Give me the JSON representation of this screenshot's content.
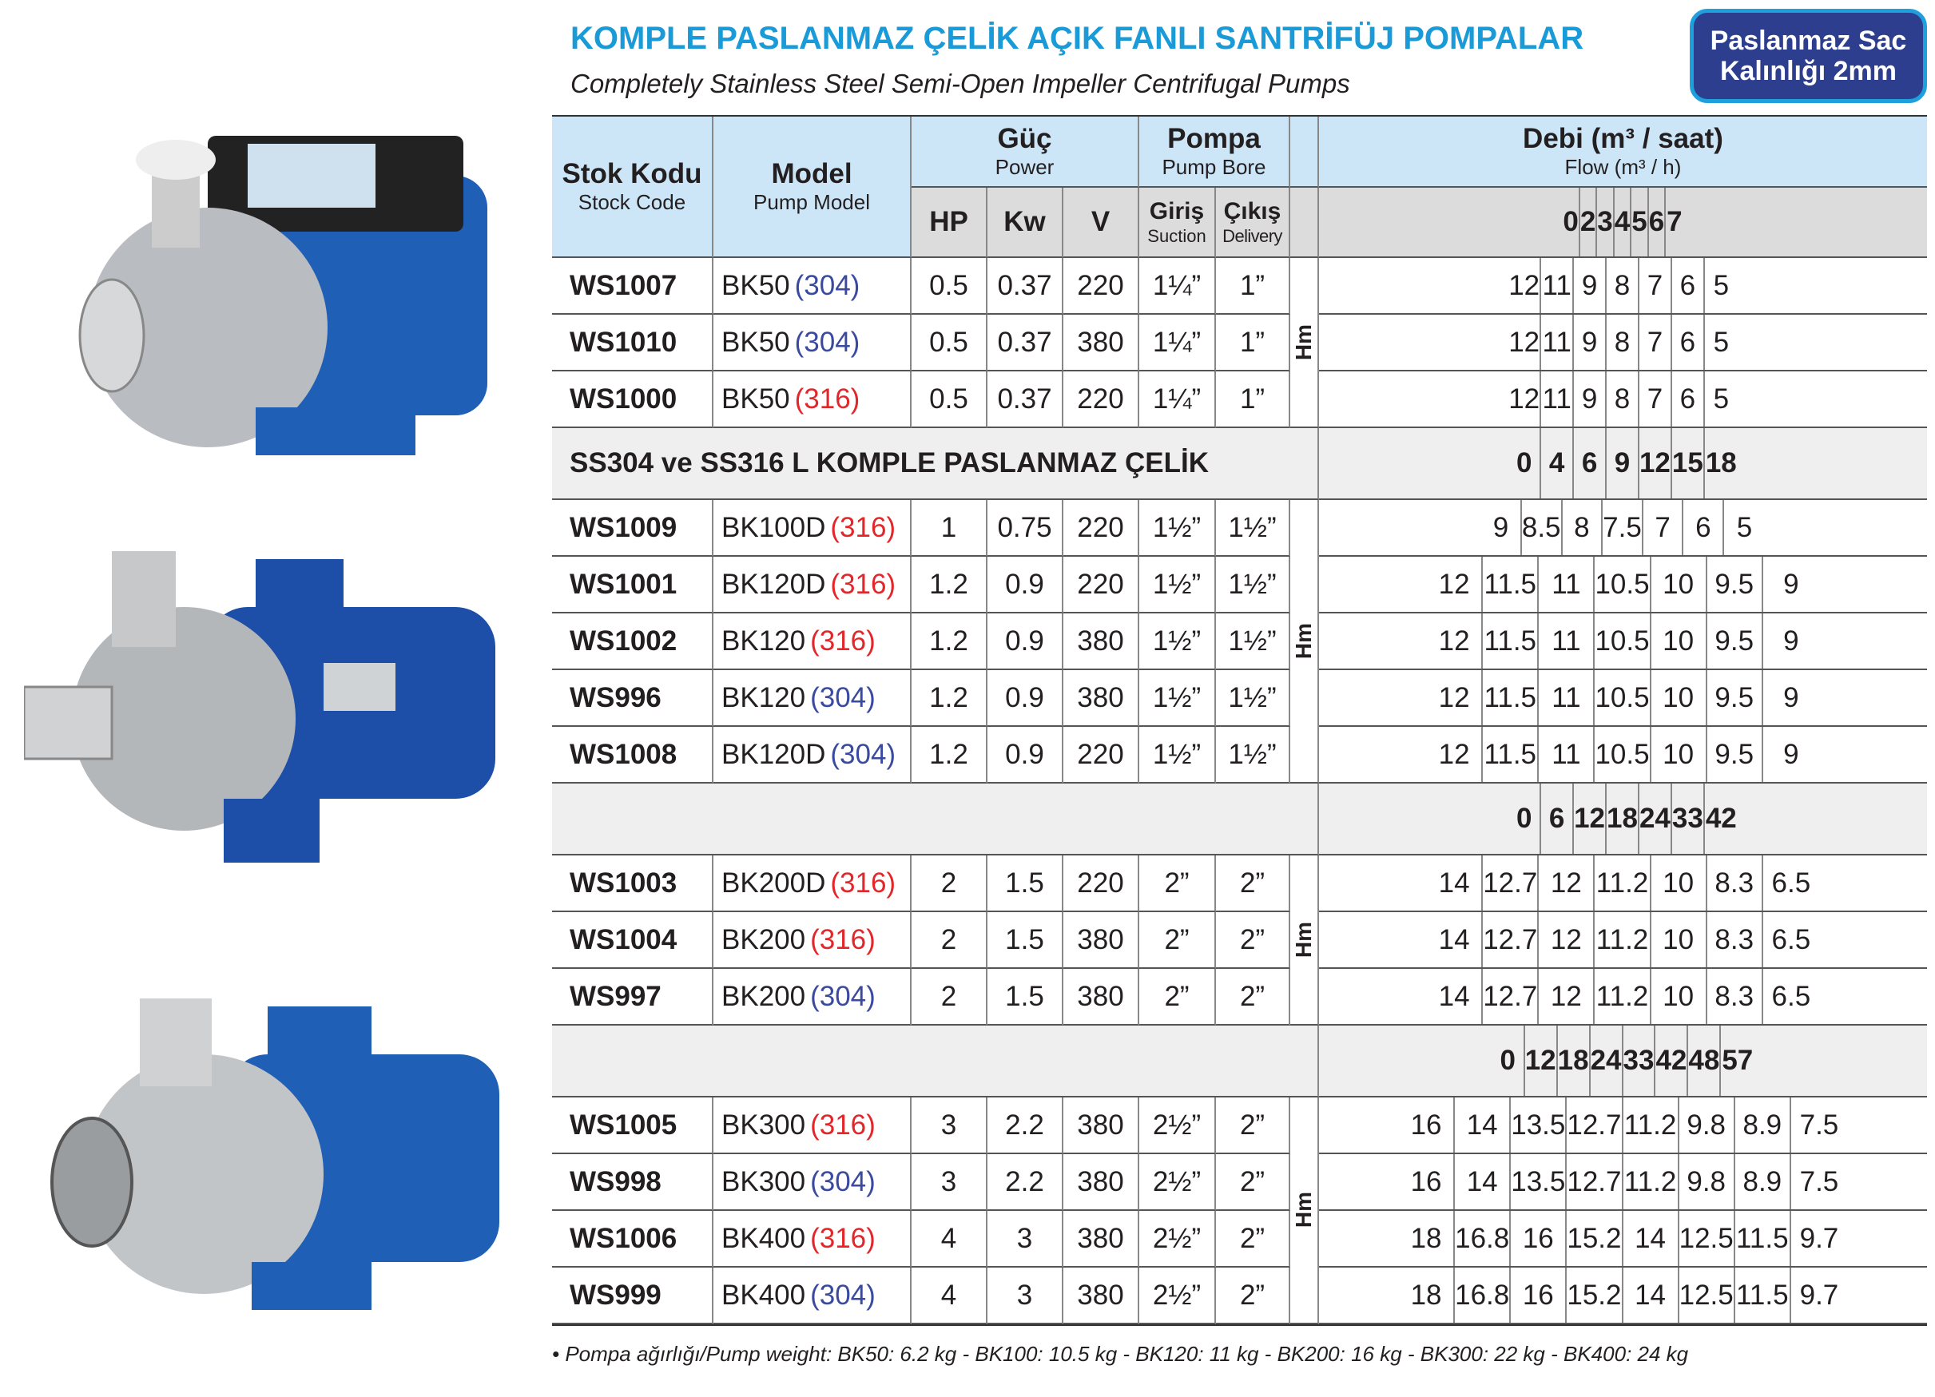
{
  "title": "KOMPLE PASLANMAZ ÇELİK AÇIK FANLI SANTRİFÜJ POMPALAR",
  "subtitle": "Completely Stainless Steel Semi-Open Impeller Centrifugal Pumps",
  "badge": {
    "line1": "Paslanmaz Sac",
    "line2": "Kalınlığı 2mm"
  },
  "colors": {
    "title": "#1a9ad6",
    "badge": "#2d3e8f",
    "header": "#cce6f7",
    "mat316": "#e3262a",
    "mat304": "#3a4a9f"
  },
  "header": {
    "stock_code": "Stok Kodu",
    "stock_code_en": "Stock Code",
    "model": "Model",
    "model_en": "Pump Model",
    "power": "Güç",
    "power_en": "Power",
    "pump": "Pompa",
    "pump_en": "Pump Bore",
    "flow": "Debi (m³ / saat)",
    "flow_en": "Flow (m³ / h)",
    "hp": "HP",
    "kw": "Kw",
    "v": "V",
    "suction": "Giriş",
    "suction_en": "Suction",
    "delivery": "Çıkış",
    "delivery_en": "Delivery"
  },
  "hm_label": "Hm",
  "blocks": [
    {
      "section": "",
      "flow": [
        "0",
        "2",
        "3",
        "4",
        "5",
        "6",
        "7"
      ],
      "rows": [
        {
          "code": "WS1007",
          "model": "BK50",
          "mat": "(304)",
          "overlay": true,
          "hp": "0.5",
          "kw": "0.37",
          "v": "220",
          "in": "1¼”",
          "out": "1”",
          "hm": [
            "12",
            "11",
            "9",
            "8",
            "7",
            "6",
            "5"
          ]
        },
        {
          "code": "WS1010",
          "model": "BK50",
          "mat": "(304)",
          "overlay": true,
          "hp": "0.5",
          "kw": "0.37",
          "v": "380",
          "in": "1¼”",
          "out": "1”",
          "hm": [
            "12",
            "11",
            "9",
            "8",
            "7",
            "6",
            "5"
          ]
        },
        {
          "code": "WS1000",
          "model": "BK50",
          "mat": "(316)",
          "overlay": true,
          "hp": "0.5",
          "kw": "0.37",
          "v": "220",
          "in": "1¼”",
          "out": "1”",
          "hm": [
            "12",
            "11",
            "9",
            "8",
            "7",
            "6",
            "5"
          ]
        }
      ]
    },
    {
      "section": "SS304 ve SS316 L KOMPLE PASLANMAZ ÇELİK",
      "flow": [
        "0",
        "4",
        "6",
        "9",
        "12",
        "15",
        "18"
      ],
      "rows": [
        {
          "code": "WS1009",
          "model": "BK100D",
          "mat": "(316)",
          "overlay": false,
          "hp": "1",
          "kw": "0.75",
          "v": "220",
          "in": "1½”",
          "out": "1½”",
          "hm": [
            "9",
            "8.5",
            "8",
            "7.5",
            "7",
            "6",
            "5"
          ]
        },
        {
          "code": "WS1001",
          "model": "BK120D",
          "mat": "(316)",
          "overlay": true,
          "hp": "1.2",
          "kw": "0.9",
          "v": "220",
          "in": "1½”",
          "out": "1½”",
          "hm": [
            "12",
            "11.5",
            "11",
            "10.5",
            "10",
            "9.5",
            "9"
          ]
        },
        {
          "code": "WS1002",
          "model": "BK120",
          "mat": "(316)",
          "overlay": true,
          "hp": "1.2",
          "kw": "0.9",
          "v": "380",
          "in": "1½”",
          "out": "1½”",
          "hm": [
            "12",
            "11.5",
            "11",
            "10.5",
            "10",
            "9.5",
            "9"
          ]
        },
        {
          "code": "WS996",
          "model": "BK120",
          "mat": "(304)",
          "overlay": true,
          "hp": "1.2",
          "kw": "0.9",
          "v": "380",
          "in": "1½”",
          "out": "1½”",
          "hm": [
            "12",
            "11.5",
            "11",
            "10.5",
            "10",
            "9.5",
            "9"
          ]
        },
        {
          "code": "WS1008",
          "model": "BK120D",
          "mat": "(304)",
          "overlay": false,
          "hp": "1.2",
          "kw": "0.9",
          "v": "220",
          "in": "1½”",
          "out": "1½”",
          "hm": [
            "12",
            "11.5",
            "11",
            "10.5",
            "10",
            "9.5",
            "9"
          ]
        }
      ]
    },
    {
      "section": "",
      "flow": [
        "0",
        "6",
        "12",
        "18",
        "24",
        "33",
        "42"
      ],
      "rows": [
        {
          "code": "WS1003",
          "model": "BK200D",
          "mat": "(316)",
          "overlay": false,
          "hp": "2",
          "kw": "1.5",
          "v": "220",
          "in": "2”",
          "out": "2”",
          "hm": [
            "14",
            "12.7",
            "12",
            "11.2",
            "10",
            "8.3",
            "6.5"
          ]
        },
        {
          "code": "WS1004",
          "model": "BK200",
          "mat": "(316)",
          "overlay": true,
          "hp": "2",
          "kw": "1.5",
          "v": "380",
          "in": "2”",
          "out": "2”",
          "hm": [
            "14",
            "12.7",
            "12",
            "11.2",
            "10",
            "8.3",
            "6.5"
          ]
        },
        {
          "code": "WS997",
          "model": "BK200",
          "mat": "(304)",
          "overlay": true,
          "hp": "2",
          "kw": "1.5",
          "v": "380",
          "in": "2”",
          "out": "2”",
          "hm": [
            "14",
            "12.7",
            "12",
            "11.2",
            "10",
            "8.3",
            "6.5"
          ]
        }
      ]
    },
    {
      "section": "",
      "flow": [
        "0",
        "12",
        "18",
        "24",
        "33",
        "42",
        "48",
        "57"
      ],
      "rows": [
        {
          "code": "WS1005",
          "model": "BK300",
          "mat": "(316)",
          "overlay": true,
          "hp": "3",
          "kw": "2.2",
          "v": "380",
          "in": "2½”",
          "out": "2”",
          "hm": [
            "16",
            "14",
            "13.5",
            "12.7",
            "11.2",
            "9.8",
            "8.9",
            "7.5"
          ]
        },
        {
          "code": "WS998",
          "model": "BK300",
          "mat": "(304)",
          "overlay": true,
          "hp": "3",
          "kw": "2.2",
          "v": "380",
          "in": "2½”",
          "out": "2”",
          "hm": [
            "16",
            "14",
            "13.5",
            "12.7",
            "11.2",
            "9.8",
            "8.9",
            "7.5"
          ]
        },
        {
          "code": "WS1006",
          "model": "BK400",
          "mat": "(316)",
          "overlay": true,
          "hp": "4",
          "kw": "3",
          "v": "380",
          "in": "2½”",
          "out": "2”",
          "hm": [
            "18",
            "16.8",
            "16",
            "15.2",
            "14",
            "12.5",
            "11.5",
            "9.7"
          ]
        },
        {
          "code": "WS999",
          "model": "BK400",
          "mat": "(304)",
          "overlay": true,
          "hp": "4",
          "kw": "3",
          "v": "380",
          "in": "2½”",
          "out": "2”",
          "hm": [
            "18",
            "16.8",
            "16",
            "15.2",
            "14",
            "12.5",
            "11.5",
            "9.7"
          ]
        }
      ]
    }
  ],
  "footnote": "• Pompa ağırlığı/Pump weight: BK50: 6.2 kg - BK100: 10.5 kg - BK120: 11 kg - BK200: 16 kg - BK300: 22 kg - BK400: 24 kg"
}
